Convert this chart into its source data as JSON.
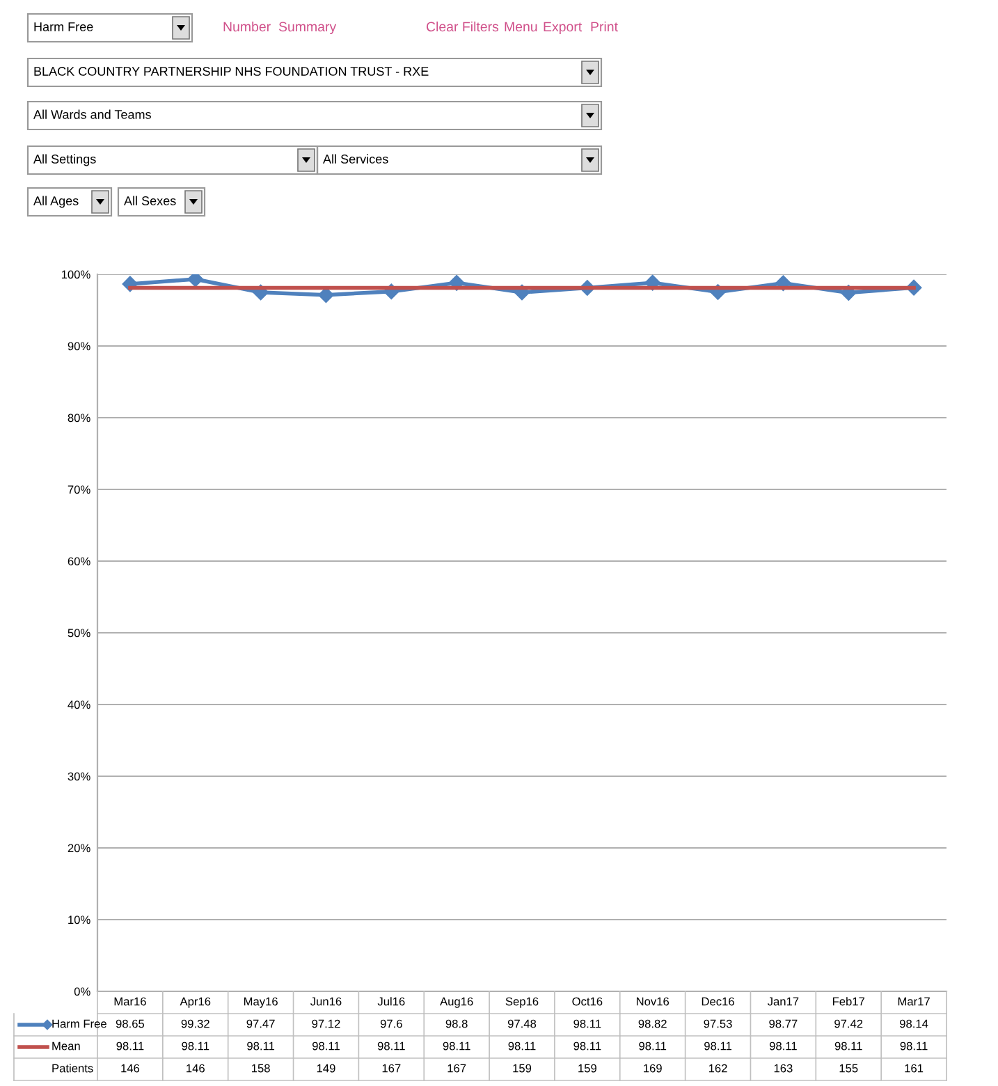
{
  "chart_data": {
    "type": "line",
    "categories": [
      "Mar16",
      "Apr16",
      "May16",
      "Jun16",
      "Jul16",
      "Aug16",
      "Sep16",
      "Oct16",
      "Nov16",
      "Dec16",
      "Jan17",
      "Feb17",
      "Mar17"
    ],
    "series": [
      {
        "name": "Harm Free",
        "color": "#4f81bd",
        "marker": "diamond",
        "values": [
          98.65,
          99.32,
          97.47,
          97.12,
          97.6,
          98.8,
          97.48,
          98.11,
          98.82,
          97.53,
          98.77,
          97.42,
          98.14
        ]
      },
      {
        "name": "Mean",
        "color": "#c0504d",
        "marker": "none",
        "values": [
          98.11,
          98.11,
          98.11,
          98.11,
          98.11,
          98.11,
          98.11,
          98.11,
          98.11,
          98.11,
          98.11,
          98.11,
          98.11
        ]
      }
    ],
    "ylim": [
      0,
      100
    ],
    "yticks": [
      {
        "value": 0,
        "label": "0%"
      },
      {
        "value": 10,
        "label": "10%"
      },
      {
        "value": 20,
        "label": "20%"
      },
      {
        "value": 30,
        "label": "30%"
      },
      {
        "value": 40,
        "label": "40%"
      },
      {
        "value": 50,
        "label": "50%"
      },
      {
        "value": 60,
        "label": "60%"
      },
      {
        "value": 70,
        "label": "70%"
      },
      {
        "value": 80,
        "label": "80%"
      },
      {
        "value": 90,
        "label": "90%"
      },
      {
        "value": 100,
        "label": "100%"
      }
    ],
    "grid": "y",
    "legend": "bottom",
    "data_labels": true,
    "annotations": [
      "Harm Free",
      "Number",
      "Summary",
      "Clear Filters",
      "Menu",
      "Export",
      "Print",
      "BLACK COUNTRY PARTNERSHIP NHS FOUNDATION TRUST - RXE",
      "All Wards and Teams",
      "All Settings",
      "All Services",
      "All Ages",
      "All Sexes",
      "Patients",
      "146",
      "146",
      "158",
      "149",
      "167",
      "167",
      "159",
      "159",
      "169",
      "162",
      "163",
      "155",
      "161"
    ]
  }
}
